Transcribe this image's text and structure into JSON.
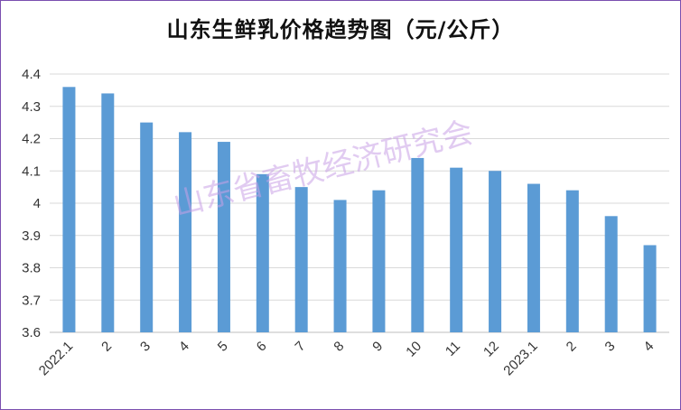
{
  "chart_data": {
    "type": "bar",
    "title": "山东生鲜乳价格趋势图（元/公斤）",
    "categories": [
      "2022.1",
      "2",
      "3",
      "4",
      "5",
      "6",
      "7",
      "8",
      "9",
      "10",
      "11",
      "12",
      "2023.1",
      "2",
      "3",
      "4"
    ],
    "values": [
      4.36,
      4.34,
      4.25,
      4.22,
      4.19,
      4.09,
      4.05,
      4.01,
      4.04,
      4.14,
      4.11,
      4.1,
      4.06,
      4.04,
      3.96,
      3.87
    ],
    "ylim": [
      3.6,
      4.4
    ],
    "yticks": [
      "3.6",
      "3.7",
      "3.8",
      "3.9",
      "4",
      "4.1",
      "4.2",
      "4.3",
      "4.4"
    ],
    "grid": true,
    "legend": "none",
    "bar_color": "#5b9bd5",
    "watermark": "山东省畜牧经济研究会"
  },
  "colors": {
    "border": "#7a4fb0",
    "grid": "#d9d9d9",
    "axis": "#bfbfbf"
  }
}
